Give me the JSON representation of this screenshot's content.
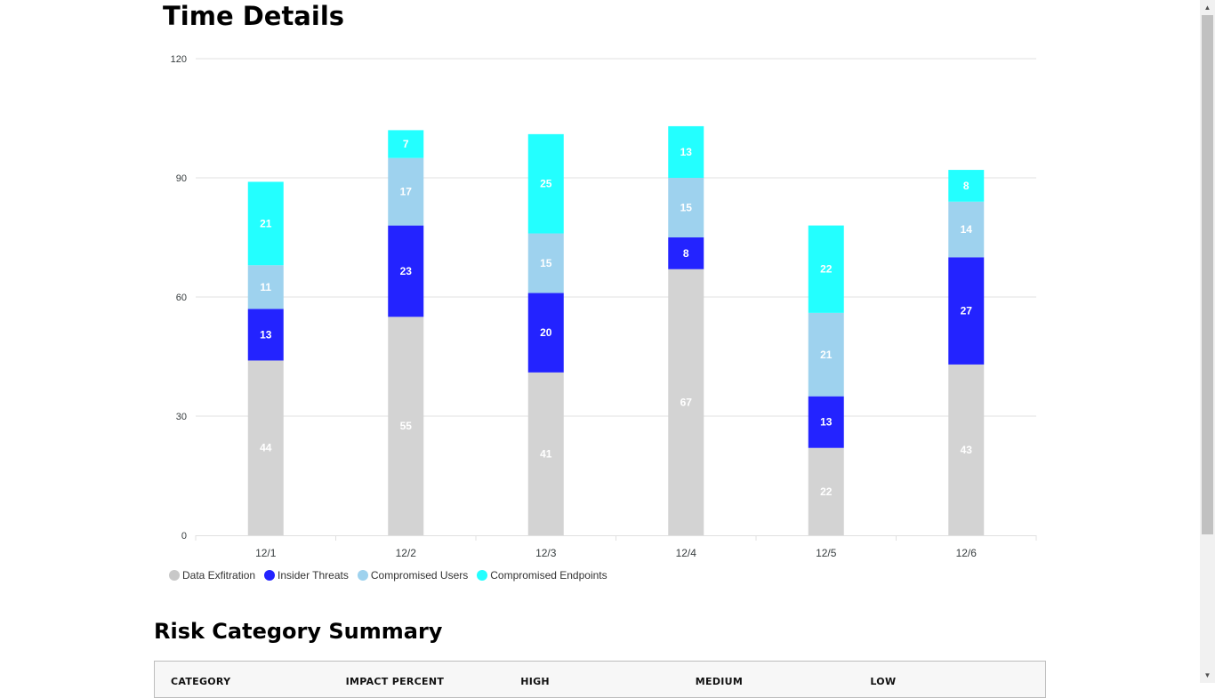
{
  "page": {
    "title": "Time Details",
    "summary_title": "Risk Category Summary"
  },
  "table": {
    "columns": [
      "CATEGORY",
      "IMPACT PERCENT",
      "HIGH",
      "MEDIUM",
      "LOW"
    ]
  },
  "chart_data": {
    "type": "bar",
    "stacked": true,
    "categories": [
      "12/1",
      "12/2",
      "12/3",
      "12/4",
      "12/5",
      "12/6"
    ],
    "series": [
      {
        "name": "Data Exfitration",
        "color": "#d3d3d3",
        "label_color": "#ffffff",
        "values": [
          44,
          55,
          41,
          67,
          22,
          43
        ]
      },
      {
        "name": "Insider Threats",
        "color": "#2323ff",
        "label_color": "#ffffff",
        "values": [
          13,
          23,
          20,
          8,
          13,
          27
        ]
      },
      {
        "name": "Compromised Users",
        "color": "#9ed2ee",
        "label_color": "#ffffff",
        "values": [
          11,
          17,
          15,
          15,
          21,
          14
        ]
      },
      {
        "name": "Compromised Endpoints",
        "color": "#23ffff",
        "label_color": "#ffffff",
        "values": [
          21,
          7,
          25,
          13,
          22,
          8
        ]
      }
    ],
    "ylim": [
      0,
      120
    ],
    "yticks": [
      0,
      30,
      60,
      90,
      120
    ],
    "grid": true,
    "legend": "bottom-left",
    "xlabel": "",
    "ylabel": ""
  }
}
